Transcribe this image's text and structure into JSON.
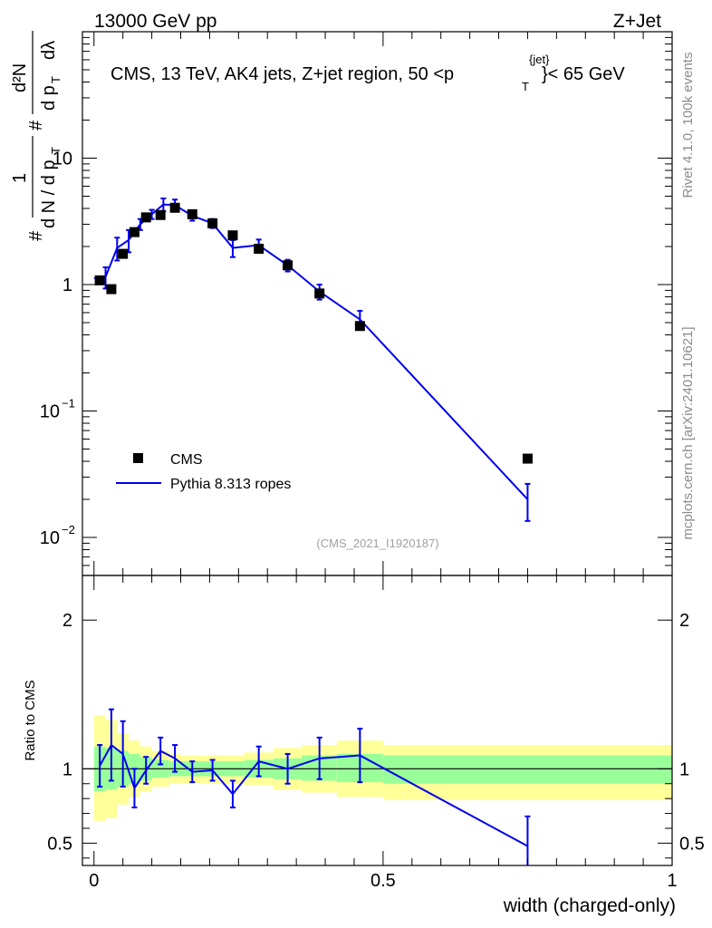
{
  "header": {
    "left": "13000 GeV pp",
    "right": "Z+Jet"
  },
  "side_text": {
    "rivet": "Rivet 4.1.0,  100k events",
    "site": "mcplots.cern.ch [arXiv:2401.10621]"
  },
  "y_axis_label": {
    "hash1": "#",
    "one": "1",
    "dN_over": "d N / d p",
    "T1": "T",
    "hash2": "#",
    "d2N": "d²N",
    "dpT_dl": "d p",
    "T2": "T",
    "dlambda": "dλ"
  },
  "chart_data": [
    {
      "type": "line",
      "panel": "main",
      "title": "CMS, 13 TeV, AK4 jets, Z+jet region, 50 <p",
      "title_sup": "{jet}",
      "title_sub": "T",
      "title_end": "}< 65 GeV",
      "watermark": "(CMS_2021_I1920187)",
      "xlabel": "width (charged-only)",
      "xlim": [
        -0.02,
        1.0
      ],
      "ylim": [
        0.005,
        100
      ],
      "yscale": "log",
      "xticks": [
        "0",
        "0.5",
        "1"
      ],
      "xtick_values": [
        0,
        0.5,
        1
      ],
      "yticks": [
        "10^-2",
        "10^-1",
        "1",
        "10"
      ],
      "ytick_labels": [
        {
          "base": "10",
          "exp": "−2",
          "value": 0.01
        },
        {
          "base": "10",
          "exp": "−1",
          "value": 0.1
        },
        {
          "base": "1",
          "exp": "",
          "value": 1
        },
        {
          "base": "10",
          "exp": "",
          "value": 10
        }
      ],
      "legend_position": "bottom-left",
      "series": [
        {
          "name": "CMS",
          "style": "markers",
          "color": "#000000",
          "points": [
            {
              "x": 0.01,
              "y": 1.08
            },
            {
              "x": 0.03,
              "y": 0.92
            },
            {
              "x": 0.05,
              "y": 1.75
            },
            {
              "x": 0.07,
              "y": 2.6
            },
            {
              "x": 0.09,
              "y": 3.4
            },
            {
              "x": 0.115,
              "y": 3.55
            },
            {
              "x": 0.14,
              "y": 4.05
            },
            {
              "x": 0.17,
              "y": 3.6
            },
            {
              "x": 0.205,
              "y": 3.05
            },
            {
              "x": 0.24,
              "y": 2.45
            },
            {
              "x": 0.285,
              "y": 1.92
            },
            {
              "x": 0.335,
              "y": 1.42
            },
            {
              "x": 0.39,
              "y": 0.85
            },
            {
              "x": 0.46,
              "y": 0.47
            },
            {
              "x": 0.75,
              "y": 0.042
            }
          ]
        },
        {
          "name": "Pythia 8.313 ropes",
          "style": "line",
          "color": "#0000ee",
          "points": [
            {
              "x": 0.0,
              "y": 1.12,
              "yerr": 0.12
            },
            {
              "x": 0.02,
              "y": 1.15,
              "yerr": 0.22
            },
            {
              "x": 0.04,
              "y": 1.95,
              "yerr": 0.4
            },
            {
              "x": 0.06,
              "y": 2.25,
              "yerr": 0.45
            },
            {
              "x": 0.08,
              "y": 3.0,
              "yerr": 0.3
            },
            {
              "x": 0.1,
              "y": 3.6,
              "yerr": 0.3
            },
            {
              "x": 0.12,
              "y": 4.3,
              "yerr": 0.5
            },
            {
              "x": 0.14,
              "y": 4.25,
              "yerr": 0.45
            },
            {
              "x": 0.17,
              "y": 3.5,
              "yerr": 0.3
            },
            {
              "x": 0.205,
              "y": 3.05,
              "yerr": 0.25
            },
            {
              "x": 0.24,
              "y": 1.95,
              "yerr": 0.3
            },
            {
              "x": 0.285,
              "y": 2.05,
              "yerr": 0.22
            },
            {
              "x": 0.335,
              "y": 1.42,
              "yerr": 0.15
            },
            {
              "x": 0.39,
              "y": 0.88,
              "yerr": 0.12
            },
            {
              "x": 0.46,
              "y": 0.53,
              "yerr": 0.09
            },
            {
              "x": 0.75,
              "y": 0.02,
              "yerr": 0.0065
            }
          ]
        }
      ]
    },
    {
      "type": "line",
      "panel": "ratio",
      "ylabel": "Ratio to CMS",
      "xlim": [
        -0.02,
        1.0
      ],
      "ylim": [
        0.35,
        2.3
      ],
      "xticks": [
        "0",
        "0.5",
        "1"
      ],
      "yticks": [
        "0.5",
        "1",
        "2"
      ],
      "ytick_values": [
        0.5,
        1,
        2
      ],
      "reference_line": 1,
      "uncertainty_bands": [
        {
          "x0": 0.0,
          "x1": 0.02,
          "inner": [
            0.85,
            1.15
          ],
          "outer": [
            0.65,
            1.36
          ]
        },
        {
          "x0": 0.02,
          "x1": 0.04,
          "inner": [
            0.86,
            1.14
          ],
          "outer": [
            0.67,
            1.33
          ]
        },
        {
          "x0": 0.04,
          "x1": 0.06,
          "inner": [
            0.88,
            1.12
          ],
          "outer": [
            0.76,
            1.24
          ]
        },
        {
          "x0": 0.06,
          "x1": 0.08,
          "inner": [
            0.9,
            1.1
          ],
          "outer": [
            0.81,
            1.19
          ]
        },
        {
          "x0": 0.08,
          "x1": 0.1,
          "inner": [
            0.92,
            1.08
          ],
          "outer": [
            0.85,
            1.15
          ]
        },
        {
          "x0": 0.1,
          "x1": 0.13,
          "inner": [
            0.94,
            1.06
          ],
          "outer": [
            0.88,
            1.12
          ]
        },
        {
          "x0": 0.13,
          "x1": 0.15,
          "inner": [
            0.95,
            1.05
          ],
          "outer": [
            0.9,
            1.1
          ]
        },
        {
          "x0": 0.15,
          "x1": 0.19,
          "inner": [
            0.95,
            1.05
          ],
          "outer": [
            0.9,
            1.09
          ]
        },
        {
          "x0": 0.19,
          "x1": 0.22,
          "inner": [
            0.95,
            1.05
          ],
          "outer": [
            0.9,
            1.09
          ]
        },
        {
          "x0": 0.22,
          "x1": 0.26,
          "inner": [
            0.95,
            1.05
          ],
          "outer": [
            0.9,
            1.09
          ]
        },
        {
          "x0": 0.26,
          "x1": 0.31,
          "inner": [
            0.94,
            1.06
          ],
          "outer": [
            0.89,
            1.11
          ]
        },
        {
          "x0": 0.31,
          "x1": 0.36,
          "inner": [
            0.93,
            1.07
          ],
          "outer": [
            0.86,
            1.14
          ]
        },
        {
          "x0": 0.36,
          "x1": 0.42,
          "inner": [
            0.92,
            1.09
          ],
          "outer": [
            0.84,
            1.16
          ]
        },
        {
          "x0": 0.42,
          "x1": 0.5,
          "inner": [
            0.91,
            1.1
          ],
          "outer": [
            0.81,
            1.19
          ]
        },
        {
          "x0": 0.5,
          "x1": 1.0,
          "inner": [
            0.9,
            1.09
          ],
          "outer": [
            0.79,
            1.16
          ]
        }
      ],
      "band_colors": {
        "inner": "#99ff99",
        "outer": "#ffff99"
      },
      "series": [
        {
          "name": "Pythia 8.313 ropes",
          "color": "#0000ee",
          "points": [
            {
              "x": 0.01,
              "y": 1.02,
              "yerr": 0.14
            },
            {
              "x": 0.03,
              "y": 1.16,
              "yerr": 0.24
            },
            {
              "x": 0.05,
              "y": 1.1,
              "yerr": 0.22
            },
            {
              "x": 0.07,
              "y": 0.87,
              "yerr": 0.13
            },
            {
              "x": 0.09,
              "y": 0.99,
              "yerr": 0.09
            },
            {
              "x": 0.115,
              "y": 1.12,
              "yerr": 0.09
            },
            {
              "x": 0.14,
              "y": 1.07,
              "yerr": 0.09
            },
            {
              "x": 0.17,
              "y": 0.98,
              "yerr": 0.07
            },
            {
              "x": 0.205,
              "y": 0.99,
              "yerr": 0.07
            },
            {
              "x": 0.24,
              "y": 0.83,
              "yerr": 0.09
            },
            {
              "x": 0.285,
              "y": 1.05,
              "yerr": 0.1
            },
            {
              "x": 0.335,
              "y": 1.0,
              "yerr": 0.1
            },
            {
              "x": 0.39,
              "y": 1.07,
              "yerr": 0.14
            },
            {
              "x": 0.46,
              "y": 1.09,
              "yerr": 0.18
            },
            {
              "x": 0.75,
              "y": 0.48,
              "yerr": 0.2
            }
          ]
        }
      ]
    }
  ]
}
